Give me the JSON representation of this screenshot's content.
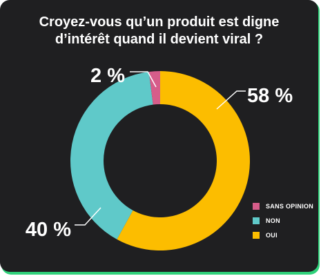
{
  "colors": {
    "background": "#1f1f21",
    "border": "#2fd17a",
    "oui": "#fcbd00",
    "non": "#5fc9c9",
    "sans_opinion": "#d65d8a",
    "text": "#ffffff"
  },
  "chart_data": {
    "type": "pie",
    "style": "donut",
    "title_lines": [
      "Croyez-vous qu’un produit est digne",
      "d’intérêt quand il devient viral ?"
    ],
    "slices": [
      {
        "label": "OUI",
        "value": 58,
        "display": "58 %",
        "color": "#fcbd00"
      },
      {
        "label": "NON",
        "value": 40,
        "display": "40 %",
        "color": "#5fc9c9"
      },
      {
        "label": "SANS OPINION",
        "value": 2,
        "display": "2 %",
        "color": "#d65d8a"
      }
    ],
    "legend": {
      "position": "right",
      "items": [
        {
          "label": "SANS OPINION",
          "color": "#d65d8a"
        },
        {
          "label": "NON",
          "color": "#5fc9c9"
        },
        {
          "label": "OUI",
          "color": "#fcbd00"
        }
      ]
    }
  }
}
